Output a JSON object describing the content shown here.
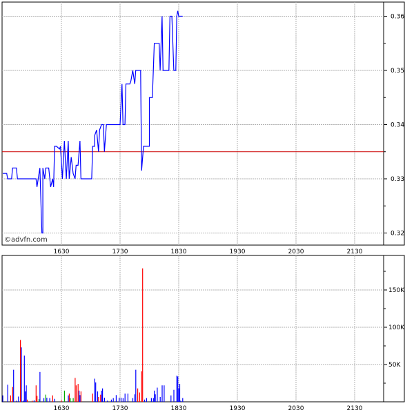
{
  "watermark": "©advfn.com",
  "chart_data": [
    {
      "type": "line",
      "panel": "price",
      "xlim": [
        "15:30",
        "22:00"
      ],
      "ylim": [
        0.318,
        0.3625
      ],
      "x_ticks": [
        "1630",
        "1730",
        "1830",
        "1930",
        "2030",
        "2130"
      ],
      "y_ticks": [
        "0.32",
        "0.33",
        "0.34",
        "0.35",
        "0.36"
      ],
      "y_tick_values": [
        0.32,
        0.33,
        0.34,
        0.35,
        0.36
      ],
      "axis_side": "right",
      "grid": true,
      "reference_line": 0.335,
      "colors": {
        "line": "#0000ff",
        "reference": "#cc0000",
        "grid": "#b0b0b0"
      },
      "points": [
        [
          "15:30",
          0.331
        ],
        [
          "15:34",
          0.331
        ],
        [
          "15:35",
          0.33
        ],
        [
          "15:39",
          0.33
        ],
        [
          "15:40",
          0.332
        ],
        [
          "15:44",
          0.332
        ],
        [
          "15:45",
          0.33
        ],
        [
          "16:04",
          0.33
        ],
        [
          "16:05",
          0.3285
        ],
        [
          "16:08",
          0.332
        ],
        [
          "16:10",
          0.32
        ],
        [
          "16:11",
          0.32
        ],
        [
          "16:11",
          0.332
        ],
        [
          "16:13",
          0.33
        ],
        [
          "16:14",
          0.332
        ],
        [
          "16:17",
          0.332
        ],
        [
          "16:19",
          0.3285
        ],
        [
          "16:21",
          0.33
        ],
        [
          "16:22",
          0.3285
        ],
        [
          "16:23",
          0.336
        ],
        [
          "16:25",
          0.336
        ],
        [
          "16:28",
          0.3355
        ],
        [
          "16:29",
          0.336
        ],
        [
          "16:31",
          0.33
        ],
        [
          "16:33",
          0.337
        ],
        [
          "16:35",
          0.33
        ],
        [
          "16:37",
          0.337
        ],
        [
          "16:38",
          0.33
        ],
        [
          "16:40",
          0.334
        ],
        [
          "16:42",
          0.331
        ],
        [
          "16:44",
          0.33
        ],
        [
          "16:45",
          0.3325
        ],
        [
          "16:47",
          0.3325
        ],
        [
          "16:49",
          0.337
        ],
        [
          "16:50",
          0.33
        ],
        [
          "17:01",
          0.33
        ],
        [
          "17:02",
          0.336
        ],
        [
          "17:04",
          0.336
        ],
        [
          "17:04",
          0.338
        ],
        [
          "17:06",
          0.339
        ],
        [
          "17:08",
          0.335
        ],
        [
          "17:09",
          0.339
        ],
        [
          "17:11",
          0.34
        ],
        [
          "17:13",
          0.34
        ],
        [
          "17:14",
          0.335
        ],
        [
          "17:16",
          0.34
        ],
        [
          "17:30",
          0.34
        ],
        [
          "17:32",
          0.3475
        ],
        [
          "17:33",
          0.34
        ],
        [
          "17:35",
          0.34
        ],
        [
          "17:36",
          0.3475
        ],
        [
          "17:40",
          0.3475
        ],
        [
          "17:41",
          0.348
        ],
        [
          "17:42",
          0.349
        ],
        [
          "17:43",
          0.35
        ],
        [
          "17:45",
          0.3475
        ],
        [
          "17:46",
          0.35
        ],
        [
          "17:51",
          0.35
        ],
        [
          "17:52",
          0.3315
        ],
        [
          "17:54",
          0.336
        ],
        [
          "18:00",
          0.336
        ],
        [
          "18:00",
          0.345
        ],
        [
          "18:03",
          0.345
        ],
        [
          "18:05",
          0.355
        ],
        [
          "18:10",
          0.355
        ],
        [
          "18:11",
          0.35
        ],
        [
          "18:13",
          0.36
        ],
        [
          "18:14",
          0.35
        ],
        [
          "18:20",
          0.35
        ],
        [
          "18:21",
          0.36
        ],
        [
          "18:23",
          0.36
        ],
        [
          "18:25",
          0.35
        ],
        [
          "18:27",
          0.35
        ],
        [
          "18:28",
          0.36
        ],
        [
          "18:29",
          0.361
        ],
        [
          "18:30",
          0.36
        ],
        [
          "18:34",
          0.36
        ]
      ]
    },
    {
      "type": "bar",
      "panel": "volume",
      "xlim": [
        "15:30",
        "22:00"
      ],
      "ylim": [
        0,
        195000
      ],
      "x_ticks": [
        "1630",
        "1730",
        "1830",
        "1930",
        "2030",
        "2130"
      ],
      "y_ticks": [
        "50K",
        "100K",
        "150K"
      ],
      "y_tick_values": [
        50000,
        100000,
        150000
      ],
      "axis_side": "right",
      "grid": true,
      "colors": {
        "up": "#0000ff",
        "down": "#ff0000",
        "neutral": "#00aa00"
      },
      "bars": [
        [
          "15:30",
          8600,
          "up"
        ],
        [
          "15:35",
          23000,
          "up"
        ],
        [
          "15:38",
          8600,
          "down"
        ],
        [
          "15:40",
          20000,
          "down"
        ],
        [
          "15:41",
          43000,
          "up"
        ],
        [
          "15:44",
          1500,
          "up"
        ],
        [
          "15:46",
          7000,
          "up"
        ],
        [
          "15:48",
          83000,
          "down"
        ],
        [
          "15:49",
          73000,
          "up"
        ],
        [
          "15:51",
          1500,
          "up"
        ],
        [
          "15:52",
          62000,
          "up"
        ],
        [
          "15:53",
          14000,
          "up"
        ],
        [
          "15:54",
          22000,
          "up"
        ],
        [
          "15:55",
          3000,
          "down"
        ],
        [
          "16:00",
          1500,
          "down"
        ],
        [
          "16:02",
          2000,
          "up"
        ],
        [
          "16:04",
          22000,
          "down"
        ],
        [
          "16:05",
          8000,
          "down"
        ],
        [
          "16:07",
          3500,
          "neutral"
        ],
        [
          "16:08",
          40000,
          "up"
        ],
        [
          "16:12",
          5000,
          "up"
        ],
        [
          "16:14",
          9600,
          "neutral"
        ],
        [
          "16:15",
          5500,
          "up"
        ],
        [
          "16:18",
          5000,
          "up"
        ],
        [
          "16:21",
          8600,
          "down"
        ],
        [
          "16:23",
          4000,
          "up"
        ],
        [
          "16:30",
          2000,
          "down"
        ],
        [
          "16:33",
          15000,
          "neutral"
        ],
        [
          "16:37",
          8600,
          "up"
        ],
        [
          "16:38",
          11000,
          "down"
        ],
        [
          "16:39",
          5000,
          "neutral"
        ],
        [
          "16:42",
          5000,
          "neutral"
        ],
        [
          "16:44",
          32000,
          "down"
        ],
        [
          "16:45",
          22000,
          "down"
        ],
        [
          "16:47",
          24000,
          "down"
        ],
        [
          "16:48",
          15000,
          "up"
        ],
        [
          "16:49",
          9000,
          "up"
        ],
        [
          "16:50",
          14000,
          "down"
        ],
        [
          "17:02",
          11000,
          "down"
        ],
        [
          "17:04",
          31000,
          "up"
        ],
        [
          "17:05",
          26000,
          "up"
        ],
        [
          "17:07",
          14000,
          "up"
        ],
        [
          "17:08",
          6500,
          "down"
        ],
        [
          "17:10",
          9500,
          "down"
        ],
        [
          "17:11",
          15000,
          "up"
        ],
        [
          "17:12",
          18000,
          "up"
        ],
        [
          "17:14",
          5500,
          "up"
        ],
        [
          "17:17",
          1500,
          "up"
        ],
        [
          "17:21",
          3000,
          "up"
        ],
        [
          "17:23",
          5000,
          "up"
        ],
        [
          "17:26",
          9000,
          "up"
        ],
        [
          "17:29",
          5500,
          "up"
        ],
        [
          "17:31",
          5500,
          "up"
        ],
        [
          "17:33",
          5000,
          "up"
        ],
        [
          "17:35",
          11000,
          "up"
        ],
        [
          "17:38",
          11000,
          "up"
        ],
        [
          "17:43",
          5000,
          "up"
        ],
        [
          "17:45",
          10000,
          "up"
        ],
        [
          "17:46",
          43000,
          "up"
        ],
        [
          "17:48",
          18000,
          "down"
        ],
        [
          "17:50",
          12500,
          "down"
        ],
        [
          "17:52",
          41000,
          "down"
        ],
        [
          "17:53",
          179000,
          "down"
        ],
        [
          "17:55",
          3000,
          "up"
        ],
        [
          "17:57",
          5000,
          "up"
        ],
        [
          "18:02",
          5000,
          "up"
        ],
        [
          "18:04",
          5000,
          "up"
        ],
        [
          "18:05",
          15000,
          "up"
        ],
        [
          "18:06",
          10000,
          "up"
        ],
        [
          "18:08",
          19000,
          "up"
        ],
        [
          "18:11",
          6500,
          "up"
        ],
        [
          "18:13",
          22000,
          "up"
        ],
        [
          "18:15",
          22000,
          "up"
        ],
        [
          "18:22",
          8600,
          "up"
        ],
        [
          "18:25",
          16000,
          "up"
        ],
        [
          "18:28",
          35000,
          "up"
        ],
        [
          "18:29",
          34000,
          "up"
        ],
        [
          "18:30",
          18000,
          "up"
        ],
        [
          "18:31",
          24000,
          "up"
        ],
        [
          "18:32",
          1500,
          "up"
        ],
        [
          "18:34",
          5000,
          "up"
        ]
      ]
    }
  ]
}
